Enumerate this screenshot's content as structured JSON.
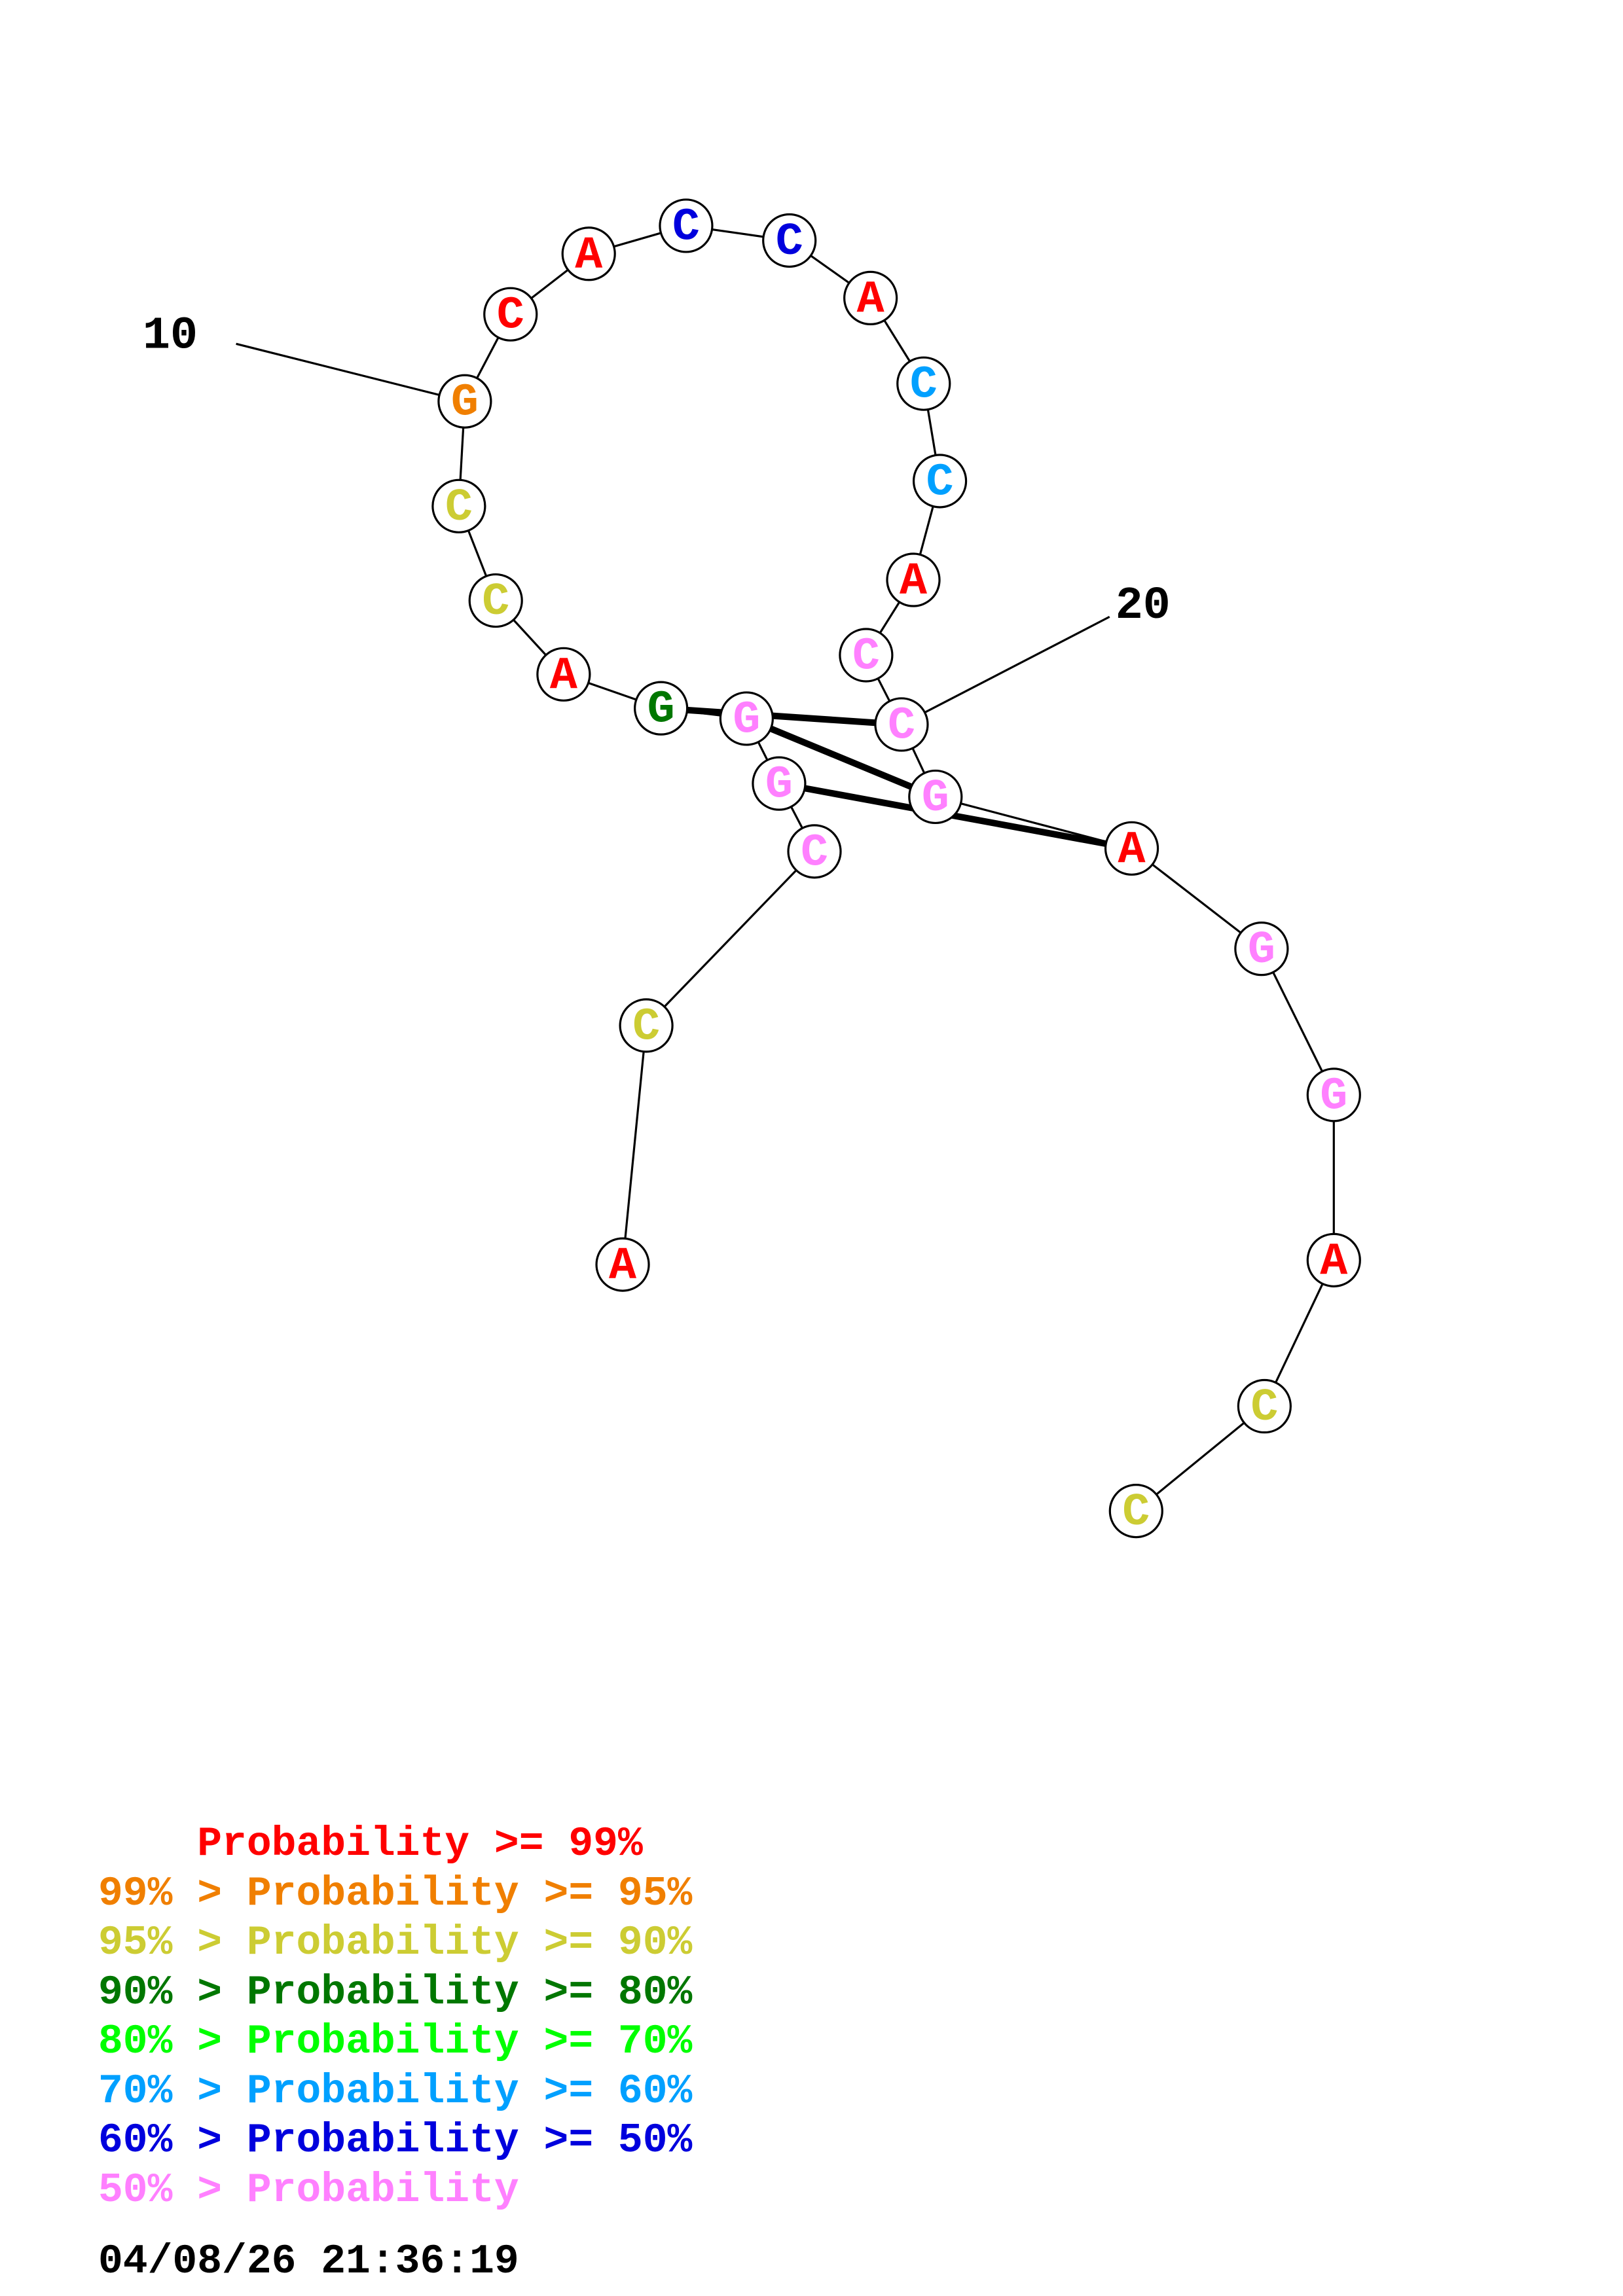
{
  "colors": {
    "p99": "#ff0000",
    "p95": "#f07f00",
    "p90": "#cccc33",
    "p80": "#007700",
    "p70": "#00ff00",
    "p60": "#00a0ff",
    "p50": "#0000dd",
    "plow": "#ff80ff"
  },
  "nucleotides": [
    {
      "base": "A",
      "prob": "p99"
    },
    {
      "base": "C",
      "prob": "p90"
    },
    {
      "base": "C",
      "prob": "plow"
    },
    {
      "base": "G",
      "prob": "plow"
    },
    {
      "base": "G",
      "prob": "plow"
    },
    {
      "base": "G",
      "prob": "p80"
    },
    {
      "base": "A",
      "prob": "p99"
    },
    {
      "base": "C",
      "prob": "p90"
    },
    {
      "base": "C",
      "prob": "p90"
    },
    {
      "base": "G",
      "prob": "p95"
    },
    {
      "base": "C",
      "prob": "p99"
    },
    {
      "base": "A",
      "prob": "p99"
    },
    {
      "base": "C",
      "prob": "p50"
    },
    {
      "base": "C",
      "prob": "p50"
    },
    {
      "base": "A",
      "prob": "p99"
    },
    {
      "base": "C",
      "prob": "p60"
    },
    {
      "base": "C",
      "prob": "p60"
    },
    {
      "base": "A",
      "prob": "p99"
    },
    {
      "base": "C",
      "prob": "plow"
    },
    {
      "base": "C",
      "prob": "plow"
    },
    {
      "base": "G",
      "prob": "plow"
    },
    {
      "base": "A",
      "prob": "p99"
    },
    {
      "base": "G",
      "prob": "plow"
    },
    {
      "base": "G",
      "prob": "plow"
    },
    {
      "base": "A",
      "prob": "p99"
    },
    {
      "base": "C",
      "prob": "p90"
    },
    {
      "base": "C",
      "prob": "p90"
    }
  ],
  "base_pairs": [
    [
      3,
      21
    ],
    [
      4,
      20
    ],
    [
      5,
      19
    ]
  ],
  "position_labels": [
    {
      "text": "10",
      "index": 10
    },
    {
      "text": "20",
      "index": 20
    }
  ],
  "legend": [
    {
      "prefix": "    ",
      "text": "Probability >= 99%",
      "color_key": "p99"
    },
    {
      "prefix": "99% > ",
      "text": "Probability >= 95%",
      "color_key": "p95"
    },
    {
      "prefix": "95% > ",
      "text": "Probability >= 90%",
      "color_key": "p90"
    },
    {
      "prefix": "90% > ",
      "text": "Probability >= 80%",
      "color_key": "p80"
    },
    {
      "prefix": "80% > ",
      "text": "Probability >= 70%",
      "color_key": "p70"
    },
    {
      "prefix": "70% > ",
      "text": "Probability >= 60%",
      "color_key": "p60"
    },
    {
      "prefix": "60% > ",
      "text": "Probability >= 50%",
      "color_key": "p50"
    },
    {
      "prefix": "50% > ",
      "text": "Probability",
      "color_key": "plow"
    }
  ],
  "timestamp": "04/08/26 21:36:19"
}
